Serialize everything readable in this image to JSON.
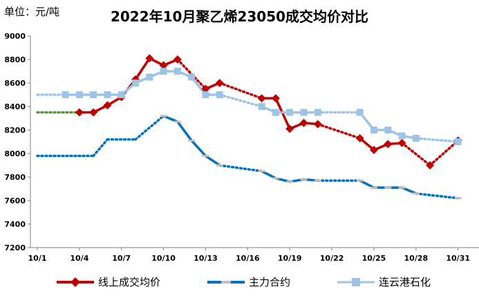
{
  "unit_label": "单位：元/吨",
  "chart_data": {
    "type": "line",
    "title": "2022年10月聚乙烯23050成交均价对比",
    "ylabel": "单位：元/吨",
    "xlabel": "",
    "ylim": [
      7200,
      9000
    ],
    "yticks": [
      7200,
      7400,
      7600,
      7800,
      8000,
      8200,
      8400,
      8600,
      8800,
      9000
    ],
    "xlim": [
      1,
      32
    ],
    "xticks": [
      1,
      4,
      7,
      10,
      13,
      16,
      19,
      22,
      25,
      28,
      31
    ],
    "xtick_labels": [
      "10/1",
      "10/4",
      "10/7",
      "10/10",
      "10/13",
      "10/16",
      "10/19",
      "10/22",
      "10/25",
      "10/28",
      "10/31"
    ],
    "grid": false,
    "legend": "bottom",
    "series": [
      {
        "name": "线上成交均价",
        "color": "#C00000",
        "marker": "diamond",
        "x": [
          4,
          5,
          6,
          7,
          8,
          9,
          10,
          11,
          13,
          14,
          17,
          18,
          19,
          20,
          21,
          24,
          25,
          26,
          27,
          29,
          31
        ],
        "values": [
          8350,
          8350,
          8410,
          8480,
          8630,
          8810,
          8750,
          8800,
          8550,
          8600,
          8470,
          8470,
          8210,
          8260,
          8250,
          8130,
          8030,
          8080,
          8090,
          7900,
          8110
        ],
        "connectors": [
          {
            "from": [
              1,
              8350
            ],
            "to": [
              4,
              8350
            ],
            "color": "#4E9A2B"
          },
          {
            "from": [
              11,
              8800
            ],
            "to": [
              13,
              8550
            ]
          },
          {
            "from": [
              14,
              8600
            ],
            "to": [
              17,
              8470
            ]
          },
          {
            "from": [
              21,
              8250
            ],
            "to": [
              24,
              8130
            ]
          },
          {
            "from": [
              27,
              8090
            ],
            "to": [
              29,
              7900
            ]
          },
          {
            "from": [
              29,
              7900
            ],
            "to": [
              31,
              8110
            ]
          }
        ]
      },
      {
        "name": "主力合约",
        "color": "#0070C0",
        "marker": "dash",
        "x": [
          10,
          11,
          12,
          13,
          14,
          17,
          18,
          19,
          20,
          21,
          24,
          25,
          26,
          27,
          28,
          31
        ],
        "values": [
          8320,
          8270,
          8110,
          7980,
          7900,
          7850,
          7790,
          7760,
          7780,
          7770,
          7770,
          7710,
          7710,
          7710,
          7660,
          7620
        ],
        "connectors": [
          {
            "from": [
              1,
              7980
            ],
            "to": [
              5,
              7980
            ]
          },
          {
            "from": [
              5,
              7980
            ],
            "to": [
              6,
              8120
            ]
          },
          {
            "from": [
              6,
              8120
            ],
            "to": [
              8,
              8120
            ]
          },
          {
            "from": [
              8,
              8120
            ],
            "to": [
              10,
              8320
            ]
          },
          {
            "from": [
              14,
              7900
            ],
            "to": [
              17,
              7850
            ]
          },
          {
            "from": [
              21,
              7770
            ],
            "to": [
              24,
              7770
            ]
          },
          {
            "from": [
              28,
              7660
            ],
            "to": [
              31,
              7620
            ]
          }
        ]
      },
      {
        "name": "连云港石化",
        "color": "#9DC3E6",
        "marker": "square",
        "x": [
          3,
          4,
          5,
          6,
          7,
          8,
          9,
          10,
          11,
          12,
          13,
          14,
          17,
          18,
          19,
          20,
          21,
          24,
          25,
          26,
          27,
          28,
          31
        ],
        "values": [
          8500,
          8500,
          8500,
          8500,
          8500,
          8600,
          8650,
          8700,
          8700,
          8650,
          8500,
          8500,
          8400,
          8350,
          8350,
          8350,
          8350,
          8350,
          8200,
          8200,
          8150,
          8130,
          8100
        ],
        "connectors": [
          {
            "from": [
              1,
              8500
            ],
            "to": [
              3,
              8500
            ]
          },
          {
            "from": [
              14,
              8500
            ],
            "to": [
              17,
              8400
            ]
          },
          {
            "from": [
              21,
              8350
            ],
            "to": [
              24,
              8350
            ]
          },
          {
            "from": [
              28,
              8130
            ],
            "to": [
              31,
              8100
            ]
          }
        ]
      }
    ]
  }
}
